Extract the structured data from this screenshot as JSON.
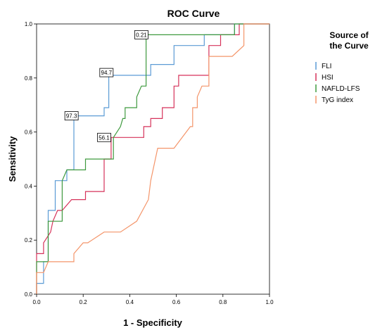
{
  "chart_data": {
    "type": "line",
    "title": "ROC Curve",
    "xlabel": "1 - Specificity",
    "ylabel": "Sensitivity",
    "xlim": [
      0,
      1
    ],
    "ylim": [
      0,
      1
    ],
    "x_ticks": [
      "0.0",
      "0.2",
      "0.4",
      "0.6",
      "0.8",
      "1.0"
    ],
    "y_ticks": [
      "0.0",
      "0.2",
      "0.4",
      "0.6",
      "0.8",
      "1.0"
    ],
    "grid": false,
    "legend": {
      "title_line1": "Source of",
      "title_line2": "the Curve",
      "position": "right"
    },
    "series": [
      {
        "name": "FLI",
        "color": "#5b9bd5",
        "points": [
          [
            0,
            0
          ],
          [
            0,
            0.04
          ],
          [
            0.03,
            0.04
          ],
          [
            0.03,
            0.12
          ],
          [
            0.05,
            0.12
          ],
          [
            0.05,
            0.31
          ],
          [
            0.08,
            0.31
          ],
          [
            0.08,
            0.42
          ],
          [
            0.13,
            0.42
          ],
          [
            0.13,
            0.46
          ],
          [
            0.16,
            0.46
          ],
          [
            0.16,
            0.66
          ],
          [
            0.29,
            0.66
          ],
          [
            0.29,
            0.69
          ],
          [
            0.31,
            0.69
          ],
          [
            0.31,
            0.81
          ],
          [
            0.49,
            0.81
          ],
          [
            0.49,
            0.85
          ],
          [
            0.59,
            0.85
          ],
          [
            0.59,
            0.92
          ],
          [
            0.72,
            0.92
          ],
          [
            0.72,
            0.96
          ],
          [
            0.85,
            0.96
          ],
          [
            0.85,
            1
          ],
          [
            1,
            1
          ]
        ]
      },
      {
        "name": "HSI",
        "color": "#d6325a",
        "points": [
          [
            0,
            0
          ],
          [
            0,
            0.15
          ],
          [
            0.03,
            0.15
          ],
          [
            0.03,
            0.19
          ],
          [
            0.06,
            0.23
          ],
          [
            0.07,
            0.27
          ],
          [
            0.09,
            0.31
          ],
          [
            0.11,
            0.31
          ],
          [
            0.15,
            0.35
          ],
          [
            0.21,
            0.35
          ],
          [
            0.21,
            0.38
          ],
          [
            0.29,
            0.38
          ],
          [
            0.29,
            0.5
          ],
          [
            0.32,
            0.5
          ],
          [
            0.32,
            0.58
          ],
          [
            0.46,
            0.58
          ],
          [
            0.46,
            0.62
          ],
          [
            0.49,
            0.62
          ],
          [
            0.49,
            0.65
          ],
          [
            0.54,
            0.65
          ],
          [
            0.54,
            0.69
          ],
          [
            0.59,
            0.69
          ],
          [
            0.59,
            0.77
          ],
          [
            0.61,
            0.77
          ],
          [
            0.61,
            0.81
          ],
          [
            0.74,
            0.81
          ],
          [
            0.74,
            0.92
          ],
          [
            0.79,
            0.92
          ],
          [
            0.79,
            0.96
          ],
          [
            0.87,
            0.96
          ],
          [
            0.87,
            1
          ],
          [
            1,
            1
          ]
        ]
      },
      {
        "name": "NAFLD-LFS",
        "color": "#3f9a3f",
        "points": [
          [
            0,
            0
          ],
          [
            0,
            0.12
          ],
          [
            0.05,
            0.12
          ],
          [
            0.05,
            0.27
          ],
          [
            0.11,
            0.27
          ],
          [
            0.11,
            0.42
          ],
          [
            0.13,
            0.46
          ],
          [
            0.21,
            0.46
          ],
          [
            0.21,
            0.5
          ],
          [
            0.33,
            0.5
          ],
          [
            0.33,
            0.58
          ],
          [
            0.36,
            0.62
          ],
          [
            0.37,
            0.65
          ],
          [
            0.38,
            0.65
          ],
          [
            0.38,
            0.69
          ],
          [
            0.43,
            0.69
          ],
          [
            0.43,
            0.73
          ],
          [
            0.45,
            0.77
          ],
          [
            0.47,
            0.77
          ],
          [
            0.47,
            0.96
          ],
          [
            0.85,
            0.96
          ],
          [
            0.85,
            1
          ],
          [
            1,
            1
          ]
        ]
      },
      {
        "name": "TyG index",
        "color": "#f4956a",
        "points": [
          [
            0,
            0
          ],
          [
            0,
            0.08
          ],
          [
            0.03,
            0.08
          ],
          [
            0.05,
            0.12
          ],
          [
            0.16,
            0.12
          ],
          [
            0.16,
            0.15
          ],
          [
            0.2,
            0.19
          ],
          [
            0.22,
            0.19
          ],
          [
            0.29,
            0.23
          ],
          [
            0.36,
            0.23
          ],
          [
            0.43,
            0.27
          ],
          [
            0.48,
            0.35
          ],
          [
            0.49,
            0.42
          ],
          [
            0.52,
            0.54
          ],
          [
            0.59,
            0.54
          ],
          [
            0.66,
            0.62
          ],
          [
            0.67,
            0.62
          ],
          [
            0.67,
            0.69
          ],
          [
            0.69,
            0.69
          ],
          [
            0.69,
            0.73
          ],
          [
            0.71,
            0.77
          ],
          [
            0.74,
            0.77
          ],
          [
            0.74,
            0.88
          ],
          [
            0.84,
            0.88
          ],
          [
            0.89,
            0.92
          ],
          [
            0.89,
            1
          ],
          [
            1,
            1
          ]
        ]
      }
    ],
    "annotations": [
      {
        "text": "0.21",
        "x": 0.45,
        "y": 0.96
      },
      {
        "text": "94.7",
        "x": 0.3,
        "y": 0.82
      },
      {
        "text": "97.3",
        "x": 0.15,
        "y": 0.66
      },
      {
        "text": "56.1",
        "x": 0.29,
        "y": 0.58
      }
    ]
  }
}
